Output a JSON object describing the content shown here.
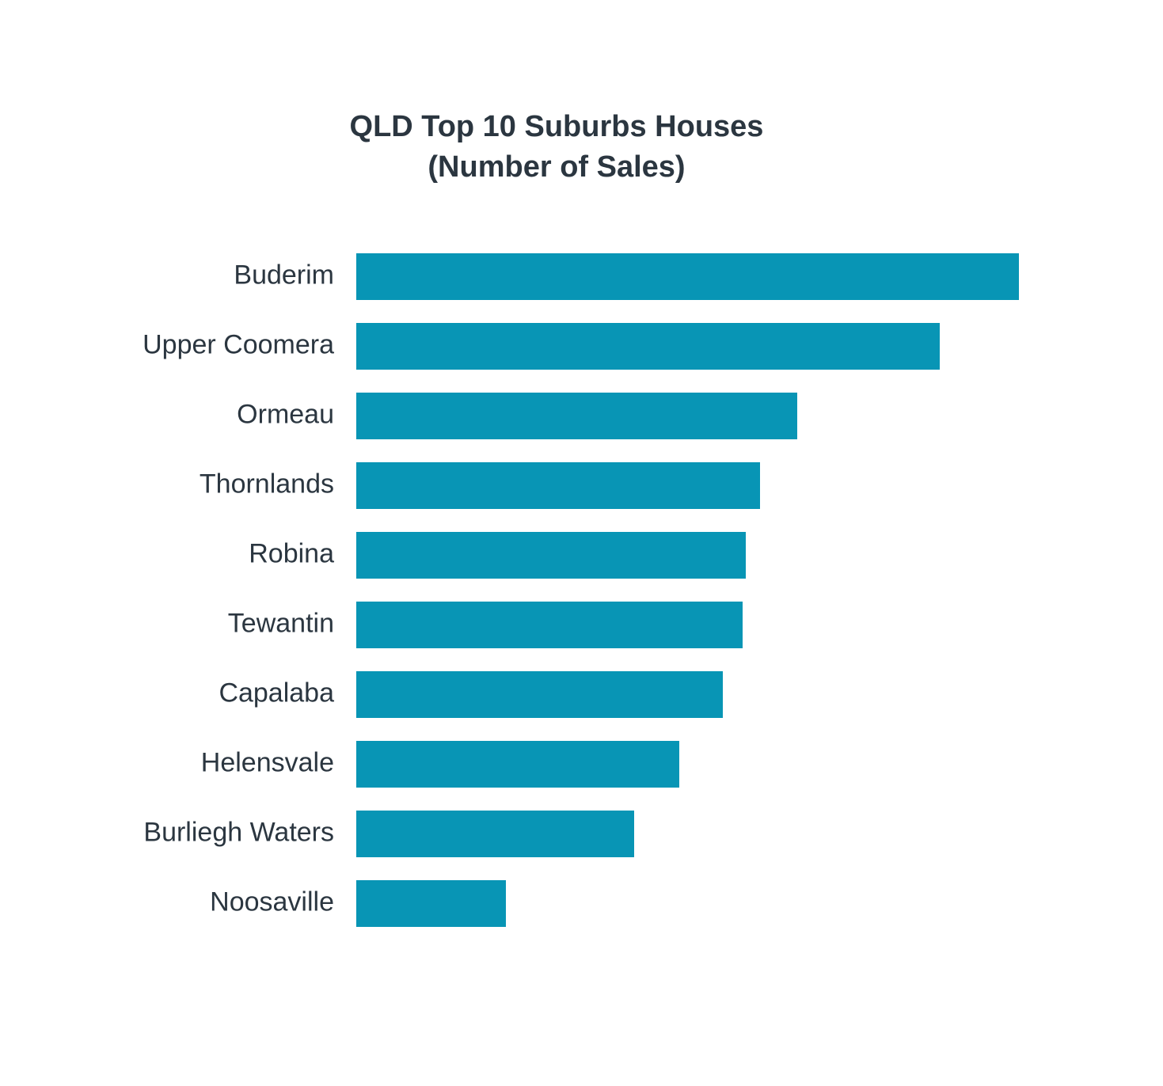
{
  "chart_data": {
    "type": "bar",
    "orientation": "horizontal",
    "title": "QLD Top 10 Suburbs Houses",
    "subtitle": "(Number of Sales)",
    "categories": [
      "Buderim",
      "Upper Coomera",
      "Ormeau",
      "Thornlands",
      "Robina",
      "Tewantin",
      "Capalaba",
      "Helensvale",
      "Burliegh Waters",
      "Noosaville"
    ],
    "values": [
      837,
      737,
      557,
      510,
      492,
      488,
      463,
      408,
      351,
      189
    ],
    "color": "#0895b5"
  }
}
